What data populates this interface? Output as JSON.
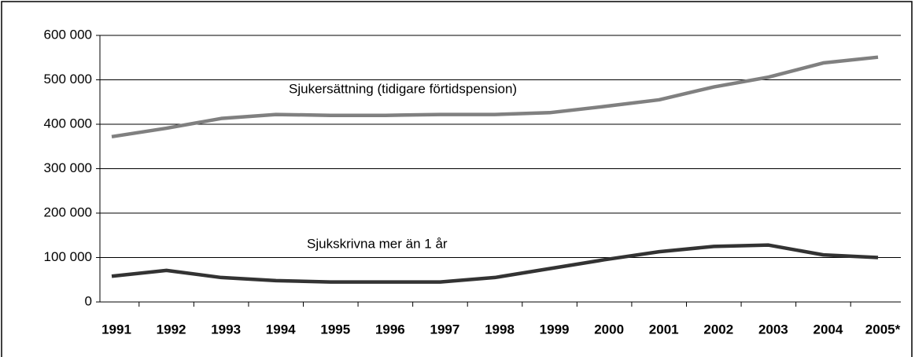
{
  "chart_data": {
    "type": "line",
    "categories": [
      "1991",
      "1992",
      "1993",
      "1994",
      "1995",
      "1996",
      "1997",
      "1998",
      "1999",
      "2000",
      "2001",
      "2002",
      "2003",
      "2004",
      "2005*"
    ],
    "series": [
      {
        "name": "Sjukersättning (tidigare förtidspension)",
        "color": "#808080",
        "values": [
          372000,
          391000,
          413000,
          422000,
          420000,
          420000,
          422000,
          422000,
          426000,
          440000,
          455000,
          484000,
          506000,
          538000,
          551000
        ]
      },
      {
        "name": "Sjukskrivna mer än 1 år",
        "color": "#333333",
        "values": [
          58000,
          71000,
          55000,
          48000,
          45000,
          45000,
          45000,
          55000,
          75000,
          95000,
          113000,
          125000,
          128000,
          106000,
          100000
        ]
      }
    ],
    "ylim": [
      0,
      600000
    ],
    "yticks": [
      0,
      {
        "value": 100000,
        "label": "100 000"
      },
      {
        "value": 200000,
        "label": "200 000"
      },
      {
        "value": 300000,
        "label": "300 000"
      },
      {
        "value": 400000,
        "label": "400 000"
      },
      {
        "value": 500000,
        "label": "500 000"
      },
      {
        "value": 600000,
        "label": "600 000"
      }
    ],
    "grid": true
  }
}
